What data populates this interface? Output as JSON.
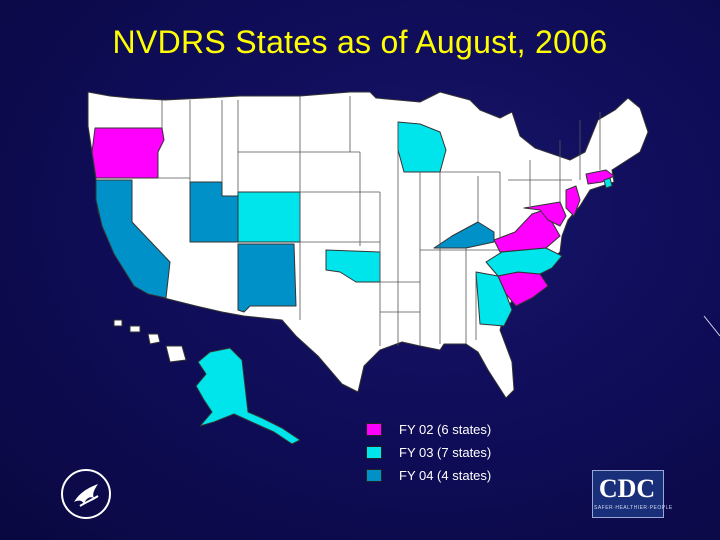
{
  "slide": {
    "title": "NVDRS States as of August, 2006"
  },
  "colors": {
    "fy02": "#ff00ff",
    "fy03": "#00e5ec",
    "fy04": "#0091c8",
    "other_state": "#ffffff",
    "background": "#0e0c55",
    "title": "#ffff00"
  },
  "legend": [
    {
      "label": "FY 02 (6 states)",
      "color": "#ff00ff"
    },
    {
      "label": "FY 03 (7 states)",
      "color": "#00e5ec"
    },
    {
      "label": "FY 04 (4 states)",
      "color": "#0091c8"
    }
  ],
  "states": {
    "FY 02": [
      "OR",
      "SC",
      "VA",
      "MD",
      "NJ",
      "MA"
    ],
    "FY 03": [
      "AK",
      "CO",
      "OK",
      "WI",
      "NC",
      "GA",
      "RI"
    ],
    "FY 04": [
      "CA",
      "UT",
      "NM",
      "KY"
    ]
  },
  "logos": {
    "hhs": "hhs-eagle-icon",
    "cdc": {
      "text": "CDC",
      "tagline": "SAFER·HEALTHIER·PEOPLE"
    }
  }
}
